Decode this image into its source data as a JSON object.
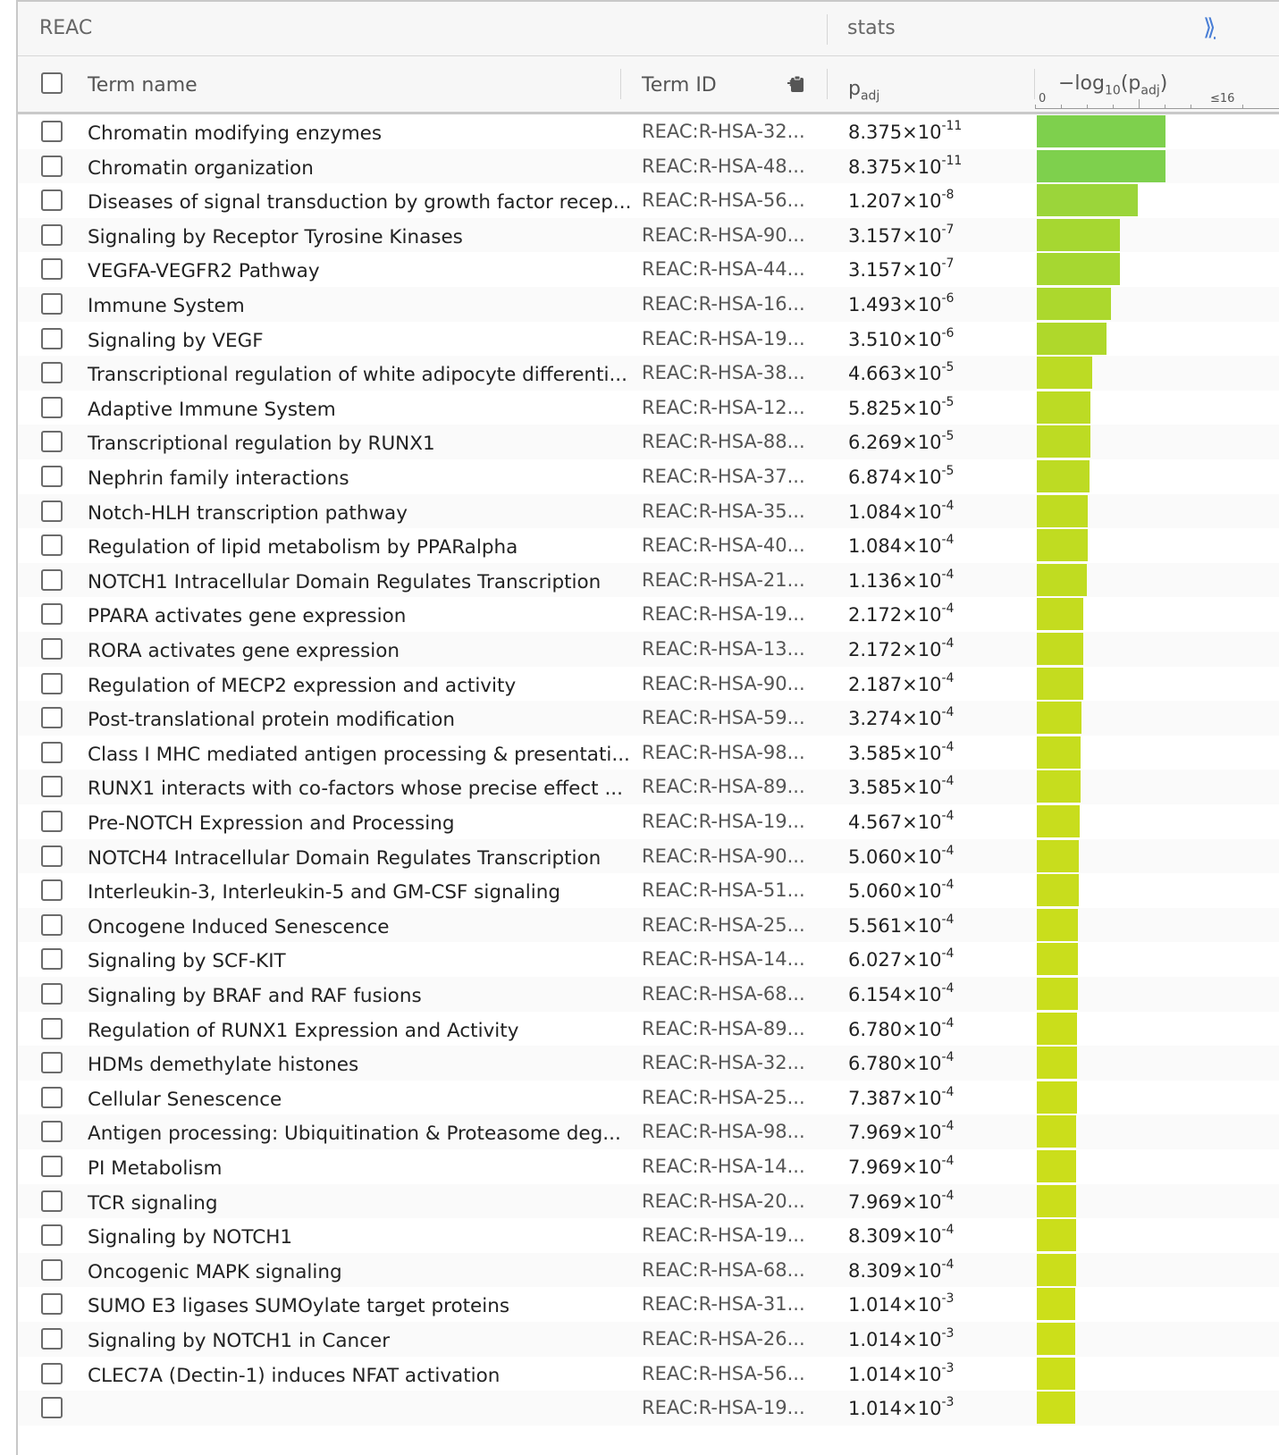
{
  "source_header": "REAC",
  "stats_header": "stats",
  "expand_icon": "chevrons-right-icon",
  "columns": {
    "term_name": "Term name",
    "term_id": "Term ID",
    "padj": "padj",
    "neglog": "−log10(padj)",
    "axis_min": "0",
    "axis_max": "≤16"
  },
  "axis_max_value": 16,
  "rows": [
    {
      "name": "Chromatin modifying enzymes",
      "id": "REAC:R-HSA-32...",
      "mant": "8.375",
      "exp": "-11",
      "neglog": 10.08,
      "color": "#7ed04d"
    },
    {
      "name": "Chromatin organization",
      "id": "REAC:R-HSA-48...",
      "mant": "8.375",
      "exp": "-11",
      "neglog": 10.08,
      "color": "#7ed04d"
    },
    {
      "name": "Diseases of signal transduction by growth factor recep...",
      "id": "REAC:R-HSA-56...",
      "mant": "1.207",
      "exp": "-8",
      "neglog": 7.92,
      "color": "#9bd53a"
    },
    {
      "name": "Signaling by Receptor Tyrosine Kinases",
      "id": "REAC:R-HSA-90...",
      "mant": "3.157",
      "exp": "-7",
      "neglog": 6.5,
      "color": "#a6d731"
    },
    {
      "name": "VEGFA-VEGFR2 Pathway",
      "id": "REAC:R-HSA-44...",
      "mant": "3.157",
      "exp": "-7",
      "neglog": 6.5,
      "color": "#a6d731"
    },
    {
      "name": "Immune System",
      "id": "REAC:R-HSA-16...",
      "mant": "1.493",
      "exp": "-6",
      "neglog": 5.83,
      "color": "#acd82d"
    },
    {
      "name": "Signaling by VEGF",
      "id": "REAC:R-HSA-19...",
      "mant": "3.510",
      "exp": "-6",
      "neglog": 5.45,
      "color": "#afd82b"
    },
    {
      "name": "Transcriptional regulation of white adipocyte differenti...",
      "id": "REAC:R-HSA-38...",
      "mant": "4.663",
      "exp": "-5",
      "neglog": 4.33,
      "color": "#bcdb24"
    },
    {
      "name": "Adaptive Immune System",
      "id": "REAC:R-HSA-12...",
      "mant": "5.825",
      "exp": "-5",
      "neglog": 4.23,
      "color": "#bcdb24"
    },
    {
      "name": "Transcriptional regulation by RUNX1",
      "id": "REAC:R-HSA-88...",
      "mant": "6.269",
      "exp": "-5",
      "neglog": 4.2,
      "color": "#bddb23"
    },
    {
      "name": "Nephrin family interactions",
      "id": "REAC:R-HSA-37...",
      "mant": "6.874",
      "exp": "-5",
      "neglog": 4.16,
      "color": "#bddb23"
    },
    {
      "name": "Notch-HLH transcription pathway",
      "id": "REAC:R-HSA-35...",
      "mant": "1.084",
      "exp": "-4",
      "neglog": 3.96,
      "color": "#c0dc21"
    },
    {
      "name": "Regulation of lipid metabolism by PPARalpha",
      "id": "REAC:R-HSA-40...",
      "mant": "1.084",
      "exp": "-4",
      "neglog": 3.96,
      "color": "#c0dc21"
    },
    {
      "name": "NOTCH1 Intracellular Domain Regulates Transcription",
      "id": "REAC:R-HSA-21...",
      "mant": "1.136",
      "exp": "-4",
      "neglog": 3.94,
      "color": "#c0dc21"
    },
    {
      "name": "PPARA activates gene expression",
      "id": "REAC:R-HSA-19...",
      "mant": "2.172",
      "exp": "-4",
      "neglog": 3.66,
      "color": "#c4dc1f"
    },
    {
      "name": "RORA activates gene expression",
      "id": "REAC:R-HSA-13...",
      "mant": "2.172",
      "exp": "-4",
      "neglog": 3.66,
      "color": "#c4dc1f"
    },
    {
      "name": "Regulation of MECP2 expression and activity",
      "id": "REAC:R-HSA-90...",
      "mant": "2.187",
      "exp": "-4",
      "neglog": 3.66,
      "color": "#c4dc1f"
    },
    {
      "name": "Post-translational protein modification",
      "id": "REAC:R-HSA-59...",
      "mant": "3.274",
      "exp": "-4",
      "neglog": 3.48,
      "color": "#c6dd1e"
    },
    {
      "name": "Class I MHC mediated antigen processing & presentati...",
      "id": "REAC:R-HSA-98...",
      "mant": "3.585",
      "exp": "-4",
      "neglog": 3.45,
      "color": "#c6dd1e"
    },
    {
      "name": "RUNX1 interacts with co-factors whose precise effect ...",
      "id": "REAC:R-HSA-89...",
      "mant": "3.585",
      "exp": "-4",
      "neglog": 3.45,
      "color": "#c6dd1e"
    },
    {
      "name": "Pre-NOTCH Expression and Processing",
      "id": "REAC:R-HSA-19...",
      "mant": "4.567",
      "exp": "-4",
      "neglog": 3.34,
      "color": "#c8dd1d"
    },
    {
      "name": "NOTCH4 Intracellular Domain Regulates Transcription",
      "id": "REAC:R-HSA-90...",
      "mant": "5.060",
      "exp": "-4",
      "neglog": 3.3,
      "color": "#c8dd1d"
    },
    {
      "name": "Interleukin-3, Interleukin-5 and GM-CSF signaling",
      "id": "REAC:R-HSA-51...",
      "mant": "5.060",
      "exp": "-4",
      "neglog": 3.3,
      "color": "#c8dd1d"
    },
    {
      "name": "Oncogene Induced Senescence",
      "id": "REAC:R-HSA-25...",
      "mant": "5.561",
      "exp": "-4",
      "neglog": 3.25,
      "color": "#c9de1c"
    },
    {
      "name": "Signaling by SCF-KIT",
      "id": "REAC:R-HSA-14...",
      "mant": "6.027",
      "exp": "-4",
      "neglog": 3.22,
      "color": "#c9de1c"
    },
    {
      "name": "Signaling by BRAF and RAF fusions",
      "id": "REAC:R-HSA-68...",
      "mant": "6.154",
      "exp": "-4",
      "neglog": 3.21,
      "color": "#c9de1c"
    },
    {
      "name": "Regulation of RUNX1 Expression and Activity",
      "id": "REAC:R-HSA-89...",
      "mant": "6.780",
      "exp": "-4",
      "neglog": 3.17,
      "color": "#cade1b"
    },
    {
      "name": "HDMs demethylate histones",
      "id": "REAC:R-HSA-32...",
      "mant": "6.780",
      "exp": "-4",
      "neglog": 3.17,
      "color": "#cade1b"
    },
    {
      "name": "Cellular Senescence",
      "id": "REAC:R-HSA-25...",
      "mant": "7.387",
      "exp": "-4",
      "neglog": 3.13,
      "color": "#cade1b"
    },
    {
      "name": "Antigen processing: Ubiquitination & Proteasome deg...",
      "id": "REAC:R-HSA-98...",
      "mant": "7.969",
      "exp": "-4",
      "neglog": 3.1,
      "color": "#cbde1b"
    },
    {
      "name": "PI Metabolism",
      "id": "REAC:R-HSA-14...",
      "mant": "7.969",
      "exp": "-4",
      "neglog": 3.1,
      "color": "#cbde1b"
    },
    {
      "name": "TCR signaling",
      "id": "REAC:R-HSA-20...",
      "mant": "7.969",
      "exp": "-4",
      "neglog": 3.1,
      "color": "#cbde1b"
    },
    {
      "name": "Signaling by NOTCH1",
      "id": "REAC:R-HSA-19...",
      "mant": "8.309",
      "exp": "-4",
      "neglog": 3.08,
      "color": "#cbde1b"
    },
    {
      "name": "Oncogenic MAPK signaling",
      "id": "REAC:R-HSA-68...",
      "mant": "8.309",
      "exp": "-4",
      "neglog": 3.08,
      "color": "#cbde1b"
    },
    {
      "name": "SUMO E3 ligases SUMOylate target proteins",
      "id": "REAC:R-HSA-31...",
      "mant": "1.014",
      "exp": "-3",
      "neglog": 2.99,
      "color": "#ccdf1a"
    },
    {
      "name": "Signaling by NOTCH1 in Cancer",
      "id": "REAC:R-HSA-26...",
      "mant": "1.014",
      "exp": "-3",
      "neglog": 2.99,
      "color": "#ccdf1a"
    },
    {
      "name": "CLEC7A (Dectin-1) induces NFAT activation",
      "id": "REAC:R-HSA-56...",
      "mant": "1.014",
      "exp": "-3",
      "neglog": 2.99,
      "color": "#ccdf1a"
    },
    {
      "name": "",
      "id": "REAC:R-HSA-19...",
      "mant": "1.014",
      "exp": "-3",
      "neglog": 2.99,
      "color": "#ccdf1a"
    }
  ]
}
